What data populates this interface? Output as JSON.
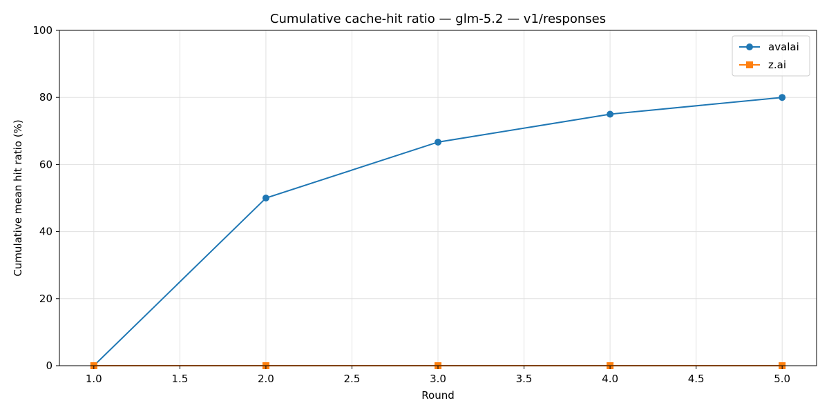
{
  "chart_data": {
    "type": "line",
    "title": "Cumulative cache-hit ratio — glm-5.2 — v1/responses",
    "xlabel": "Round",
    "ylabel": "Cumulative mean hit ratio (%)",
    "xlim": [
      0.8,
      5.2
    ],
    "ylim": [
      0,
      100
    ],
    "xticks": [
      1.0,
      1.5,
      2.0,
      2.5,
      3.0,
      3.5,
      4.0,
      4.5,
      5.0
    ],
    "xtick_labels": [
      "1.0",
      "1.5",
      "2.0",
      "2.5",
      "3.0",
      "3.5",
      "4.0",
      "4.5",
      "5.0"
    ],
    "yticks": [
      0,
      20,
      40,
      60,
      80,
      100
    ],
    "ytick_labels": [
      "0",
      "20",
      "40",
      "60",
      "80",
      "100"
    ],
    "grid": true,
    "legend_position": "top-right",
    "x": [
      1,
      2,
      3,
      4,
      5
    ],
    "series": [
      {
        "name": "avalai",
        "values": [
          0,
          50,
          66.67,
          75,
          80
        ],
        "color": "#1f77b4",
        "marker": "circle"
      },
      {
        "name": "z.ai",
        "values": [
          0,
          0,
          0,
          0,
          0
        ],
        "color": "#ff7f0e",
        "marker": "square"
      }
    ]
  }
}
